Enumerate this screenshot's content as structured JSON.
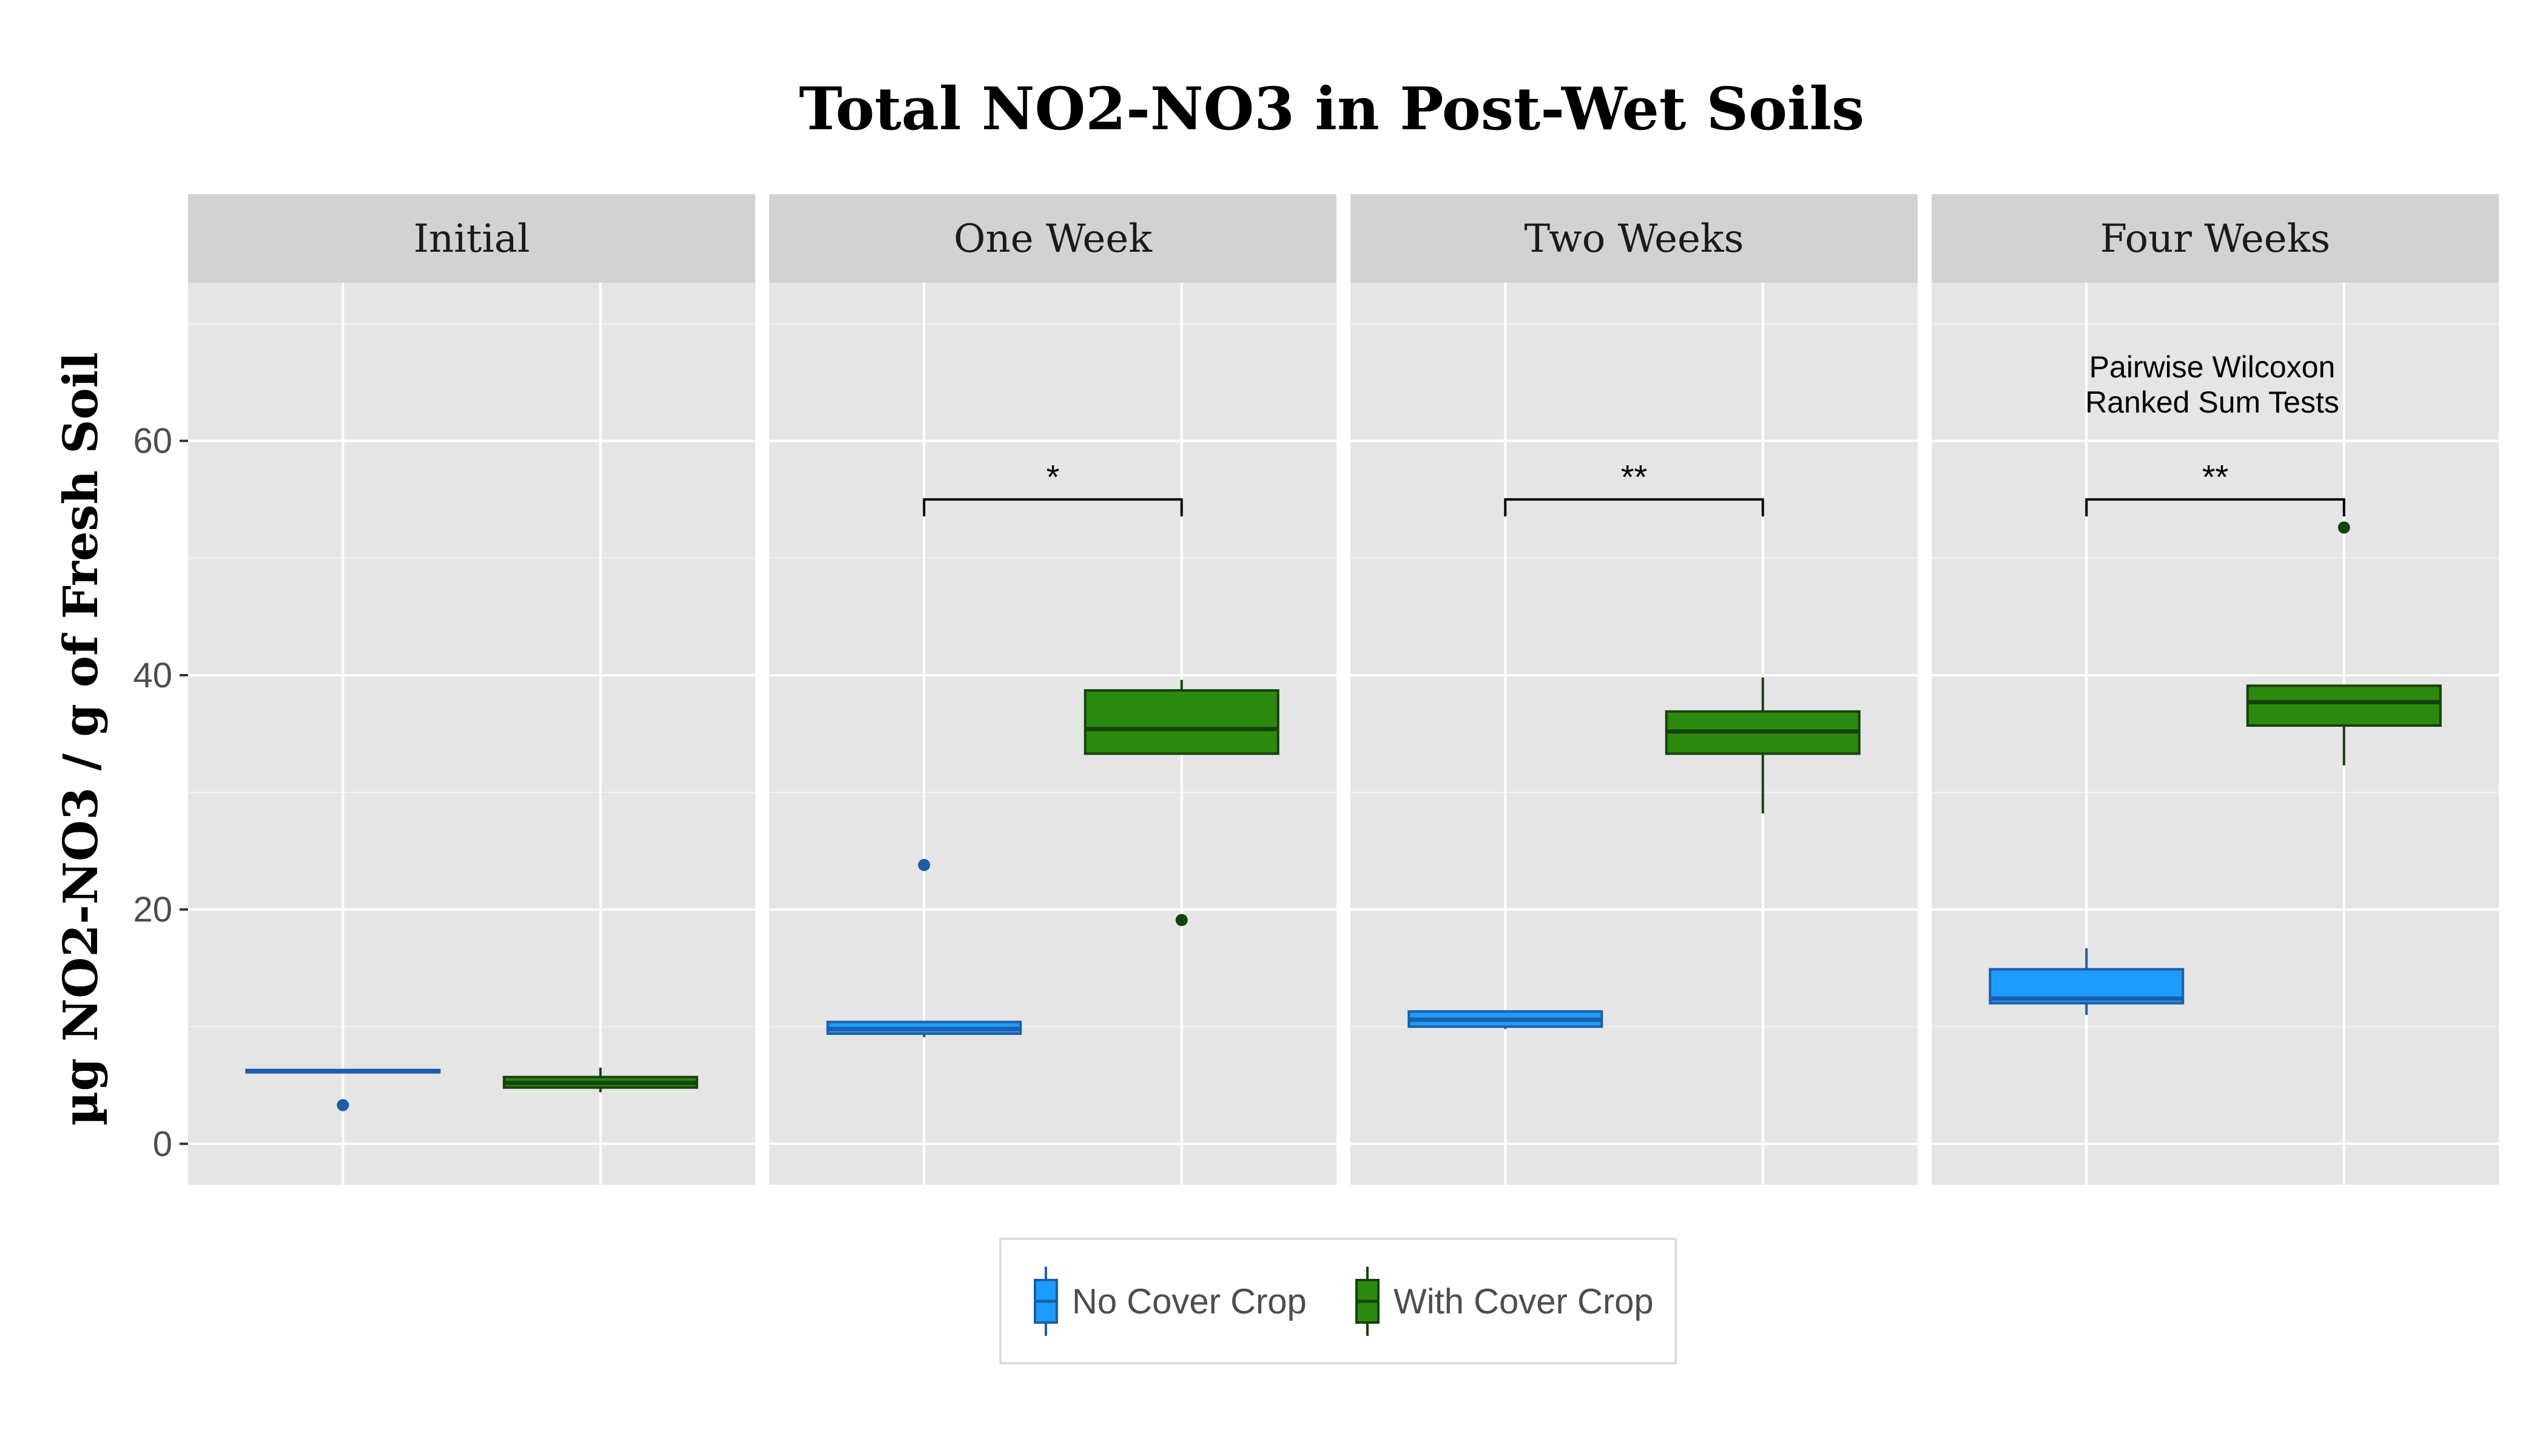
{
  "chart_data": {
    "type": "box",
    "title": "Total NO2-NO3 in Post-Wet Soils",
    "ylabel": "µg NO2-NO3 / g of Fresh Soil",
    "xlabel": "",
    "ylim": [
      -3.5,
      73.5
    ],
    "y_ticks": [
      0,
      20,
      40,
      60
    ],
    "y_tick_labels": [
      "0",
      "20",
      "40",
      "60"
    ],
    "grid": true,
    "legend_position": "bottom",
    "colors": {
      "No Cover Crop": "#1e9bff",
      "With Cover Crop": "#2c8a0e",
      "No Cover Crop outline": "#1a5fa8",
      "With Cover Crop outline": "#14420b",
      "panel_bg": "#e5e5e5",
      "strip_bg": "#d2d2d2",
      "grid": "#ffffff"
    },
    "legend": [
      "No Cover Crop",
      "With Cover Crop"
    ],
    "facets": [
      {
        "label": "Initial",
        "boxes": [
          {
            "group": "No Cover Crop",
            "min": 6.1,
            "q1": 6.1,
            "median": 6.2,
            "q3": 6.3,
            "max": 6.4,
            "outliers": [
              3.3
            ]
          },
          {
            "group": "With Cover Crop",
            "min": 4.4,
            "q1": 4.8,
            "median": 5.2,
            "q3": 5.7,
            "max": 6.5,
            "outliers": []
          }
        ],
        "comparison": null
      },
      {
        "label": "One Week",
        "boxes": [
          {
            "group": "No Cover Crop",
            "min": 9.1,
            "q1": 9.4,
            "median": 9.8,
            "q3": 10.4,
            "max": 10.4,
            "outliers": [
              23.8
            ]
          },
          {
            "group": "With Cover Crop",
            "min": 33.3,
            "q1": 33.3,
            "median": 35.4,
            "q3": 38.7,
            "max": 39.6,
            "outliers": [
              19.1
            ]
          }
        ],
        "comparison": {
          "label": "*",
          "bracket_y": 55
        }
      },
      {
        "label": "Two Weeks",
        "boxes": [
          {
            "group": "No Cover Crop",
            "min": 9.8,
            "q1": 10.0,
            "median": 10.6,
            "q3": 11.3,
            "max": 11.3,
            "outliers": []
          },
          {
            "group": "With Cover Crop",
            "min": 28.2,
            "q1": 33.3,
            "median": 35.2,
            "q3": 36.9,
            "max": 39.8,
            "outliers": []
          }
        ],
        "comparison": {
          "label": "**",
          "bracket_y": 55
        }
      },
      {
        "label": "Four Weeks",
        "boxes": [
          {
            "group": "No Cover Crop",
            "min": 11.0,
            "q1": 12.0,
            "median": 12.4,
            "q3": 14.9,
            "max": 16.7,
            "outliers": []
          },
          {
            "group": "With Cover Crop",
            "min": 32.3,
            "q1": 35.7,
            "median": 37.7,
            "q3": 39.1,
            "max": 39.1,
            "outliers": [
              52.6
            ]
          }
        ],
        "comparison": {
          "label": "**",
          "bracket_y": 55
        }
      }
    ],
    "annotation": {
      "facet": "Four Weeks",
      "lines": [
        "Pairwise Wilcoxon",
        "Ranked Sum Tests"
      ]
    }
  }
}
